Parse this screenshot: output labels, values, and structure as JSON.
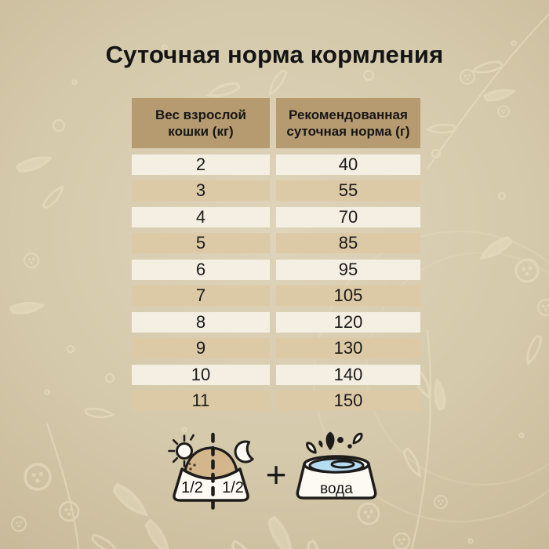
{
  "title": "Суточная норма кормления",
  "chart_data": {
    "type": "table",
    "title": "Суточная норма кормления",
    "columns": [
      "Вес взрослой кошки (кг)",
      "Рекомендованная суточная норма (г)"
    ],
    "rows": [
      [
        2,
        40
      ],
      [
        3,
        55
      ],
      [
        4,
        70
      ],
      [
        5,
        85
      ],
      [
        6,
        95
      ],
      [
        7,
        105
      ],
      [
        8,
        120
      ],
      [
        9,
        130
      ],
      [
        10,
        140
      ],
      [
        11,
        150
      ]
    ]
  },
  "illustration": {
    "half_left": "1/2",
    "half_right": "1/2",
    "plus_label": "+",
    "water_label": "вода",
    "icons": [
      "sun-icon",
      "moon-icon",
      "food-bowl-icon",
      "plus-icon",
      "water-bowl-icon",
      "water-splash-icon"
    ]
  },
  "colors": {
    "header_bg": "#b69b70",
    "row_light": "#f4efe2",
    "row_dark": "#dcc9a5",
    "title_text": "#141414",
    "outline": "#1e1c1a",
    "food": "#d4b68c",
    "water": "#b6dcf2",
    "background_center": "#ded4ba",
    "background_edge": "#c5b695",
    "pattern": "#ece1c4"
  }
}
